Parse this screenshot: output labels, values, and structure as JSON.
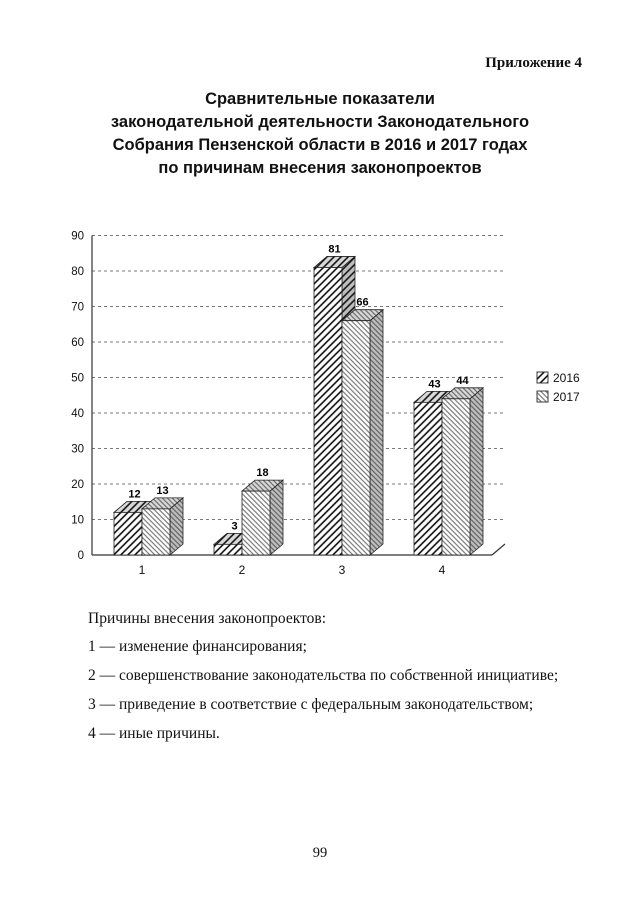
{
  "page": {
    "appendix_label": "Приложение 4",
    "title_lines": [
      "Сравнительные показатели",
      "законодательной деятельности Законодательного",
      "Собрания Пензенской области в 2016 и 2017 годах",
      "по причинам внесения законопроектов"
    ],
    "page_number": "99"
  },
  "chart_data": {
    "type": "bar",
    "style": "3d-clustered-hatched",
    "categories": [
      "1",
      "2",
      "3",
      "4"
    ],
    "series": [
      {
        "name": "2016",
        "values": [
          12,
          3,
          81,
          43
        ],
        "pattern": "diagonal-hatch-black"
      },
      {
        "name": "2017",
        "values": [
          13,
          18,
          66,
          44
        ],
        "pattern": "fine-diagonal-hatch-gray"
      }
    ],
    "ylim": [
      0,
      90
    ],
    "ytick_step": 10,
    "grid": true,
    "gridline_style": "dashed",
    "legend_position": "right",
    "value_labels": true,
    "axis_color": "#333333",
    "grid_color": "#777777"
  },
  "notes": {
    "heading": "Причины внесения законопроектов:",
    "items": [
      "1 — изменение финансирования;",
      "2 — совершенствование законодательства по собственной инициативе;",
      "3 — приведение в соответствие с федеральным законодательством;",
      "4 — иные причины."
    ]
  }
}
